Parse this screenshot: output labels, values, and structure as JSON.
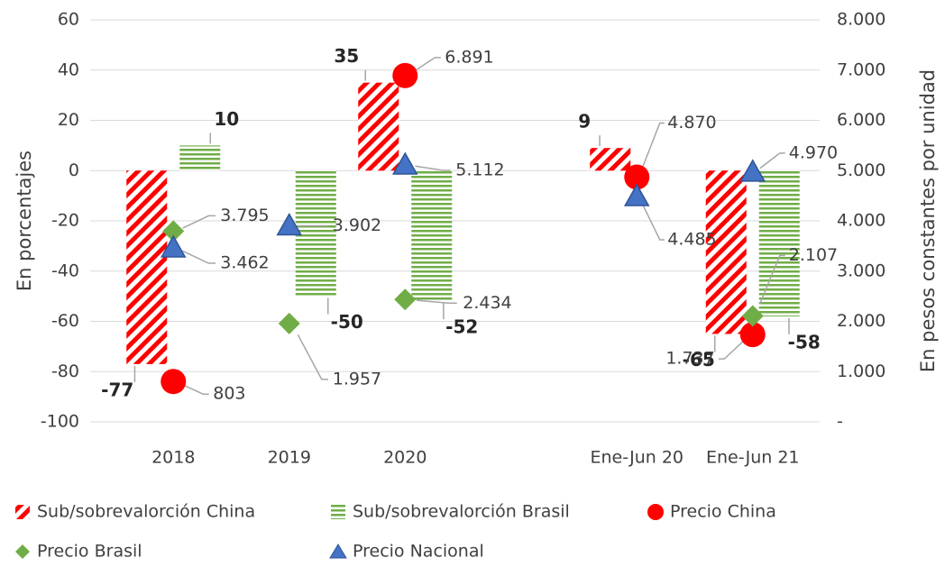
{
  "chart_data": {
    "type": "bar",
    "categories": [
      "2018",
      "2019",
      "2020",
      null,
      "Ene-Jun 20",
      "Ene-Jun 21"
    ],
    "ylabel": "En porcentajes",
    "y2label": "En pesos constantes por unidad",
    "ylim": [
      -100,
      60
    ],
    "yticks": [
      -100,
      -80,
      -60,
      -40,
      -20,
      0,
      20,
      40,
      60
    ],
    "y2lim": [
      0,
      8000
    ],
    "y2ticks": [
      {
        "value": 0,
        "label": "-"
      },
      {
        "value": 1000,
        "label": "1.000"
      },
      {
        "value": 2000,
        "label": "2.000"
      },
      {
        "value": 3000,
        "label": "3.000"
      },
      {
        "value": 4000,
        "label": "4.000"
      },
      {
        "value": 5000,
        "label": "5.000"
      },
      {
        "value": 6000,
        "label": "6.000"
      },
      {
        "value": 7000,
        "label": "7.000"
      },
      {
        "value": 8000,
        "label": "8.000"
      }
    ],
    "grid": true,
    "series": [
      {
        "name": "Sub/sobrevalorción China",
        "type": "bar",
        "pattern": "diagonal",
        "color": "#ff0000",
        "values": [
          -77,
          null,
          35,
          null,
          9,
          -65
        ]
      },
      {
        "name": "Sub/sobrevalorción Brasil",
        "type": "bar",
        "pattern": "horizontal",
        "color": "#70ad47",
        "values": [
          10,
          -50,
          -52,
          null,
          null,
          -58
        ]
      },
      {
        "name": "Precio China",
        "type": "marker",
        "marker": "circle",
        "color": "#ff0000",
        "axis": "y2",
        "values": [
          803,
          null,
          6891,
          null,
          4870,
          1737
        ],
        "value_labels": [
          "803",
          null,
          "6.891",
          null,
          "4.870",
          "1.737"
        ]
      },
      {
        "name": "Precio Brasil",
        "type": "marker",
        "marker": "diamond",
        "color": "#70ad47",
        "axis": "y2",
        "values": [
          3795,
          1957,
          2434,
          null,
          null,
          2107
        ],
        "value_labels": [
          "3.795",
          "1.957",
          "2.434",
          null,
          null,
          "2.107"
        ]
      },
      {
        "name": "Precio Nacional",
        "type": "marker",
        "marker": "triangle",
        "color": "#4472c4",
        "axis": "y2",
        "values": [
          3462,
          3902,
          5112,
          null,
          4485,
          4970
        ],
        "value_labels": [
          "3.462",
          "3.902",
          "5.112",
          null,
          "4.485",
          "4.970"
        ]
      }
    ]
  }
}
